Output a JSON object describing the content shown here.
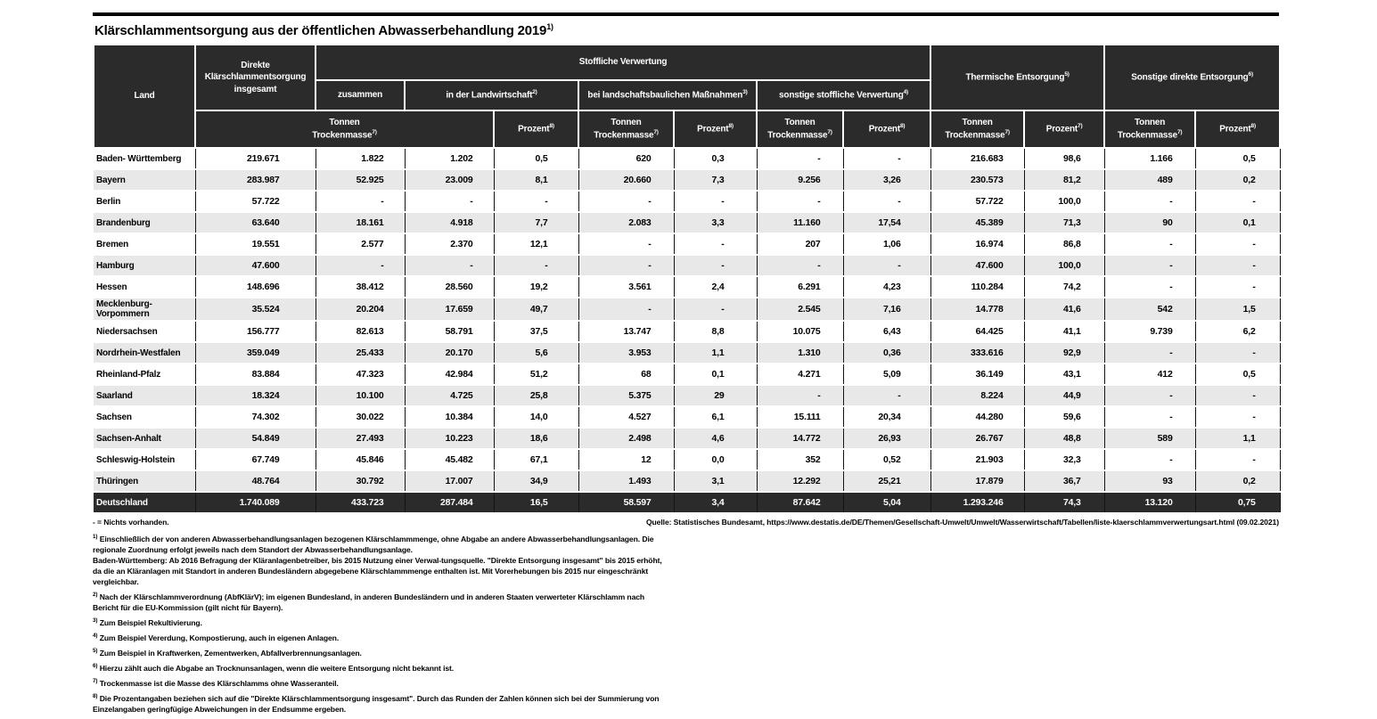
{
  "title": {
    "text": "Klärschlammentsorgung aus der öffentlichen Abwasserbehandlung 2019",
    "sup": "1)"
  },
  "header": {
    "land": "Land",
    "direkte": "Direkte Klärschlammentsorgung insgesamt",
    "stoffliche": "Stoffliche Verwertung",
    "zusammen": "zusammen",
    "landwirtschaft": {
      "label": "in der Landwirtschaft",
      "sup": "2)"
    },
    "landschaftsbau": {
      "label": "bei landschaftsbaulichen Maßnahmen",
      "sup": "3)"
    },
    "sonstige_stoffliche": {
      "label": "sonstige stoffliche Verwertung",
      "sup": "4)"
    },
    "thermische": {
      "label": "Thermische Entsorgung",
      "sup": "5)"
    },
    "sonstige_direkte": {
      "label": "Sonstige direkte Entsorgung",
      "sup": "6)"
    },
    "tonnen": {
      "line1": "Tonnen",
      "line2": "Trockenmasse",
      "sup": "7)"
    },
    "prozent8": {
      "label": "Prozent",
      "sup": "8)"
    },
    "prozent7": {
      "label": "Prozent",
      "sup": "7)"
    }
  },
  "table": {
    "value_columns": [
      "Direkte Klärschlammentsorgung insgesamt – Tonnen Trockenmasse",
      "Stoffliche Verwertung zusammen – Tonnen Trockenmasse",
      "in der Landwirtschaft – Tonnen Trockenmasse",
      "in der Landwirtschaft – Prozent",
      "bei landschaftsbaulichen Maßnahmen – Tonnen Trockenmasse",
      "bei landschaftsbaulichen Maßnahmen – Prozent",
      "sonstige stoffliche Verwertung – Tonnen Trockenmasse",
      "sonstige stoffliche Verwertung – Prozent",
      "Thermische Entsorgung – Tonnen Trockenmasse",
      "Thermische Entsorgung – Prozent",
      "Sonstige direkte Entsorgung – Tonnen Trockenmasse",
      "Sonstige direkte Entsorgung – Prozent"
    ],
    "rows": [
      {
        "land": "Baden- Württemberg",
        "values": [
          "219.671",
          "1.822",
          "1.202",
          "0,5",
          "620",
          "0,3",
          "-",
          "-",
          "216.683",
          "98,6",
          "1.166",
          "0,5"
        ]
      },
      {
        "land": "Bayern",
        "values": [
          "283.987",
          "52.925",
          "23.009",
          "8,1",
          "20.660",
          "7,3",
          "9.256",
          "3,26",
          "230.573",
          "81,2",
          "489",
          "0,2"
        ]
      },
      {
        "land": "Berlin",
        "values": [
          "57.722",
          "-",
          "-",
          "-",
          "-",
          "-",
          "-",
          "-",
          "57.722",
          "100,0",
          "-",
          "-"
        ]
      },
      {
        "land": "Brandenburg",
        "values": [
          "63.640",
          "18.161",
          "4.918",
          "7,7",
          "2.083",
          "3,3",
          "11.160",
          "17,54",
          "45.389",
          "71,3",
          "90",
          "0,1"
        ]
      },
      {
        "land": "Bremen",
        "values": [
          "19.551",
          "2.577",
          "2.370",
          "12,1",
          "-",
          "-",
          "207",
          "1,06",
          "16.974",
          "86,8",
          "-",
          "-"
        ]
      },
      {
        "land": "Hamburg",
        "values": [
          "47.600",
          "-",
          "-",
          "-",
          "-",
          "-",
          "-",
          "-",
          "47.600",
          "100,0",
          "-",
          "-"
        ]
      },
      {
        "land": "Hessen",
        "values": [
          "148.696",
          "38.412",
          "28.560",
          "19,2",
          "3.561",
          "2,4",
          "6.291",
          "4,23",
          "110.284",
          "74,2",
          "-",
          "-"
        ]
      },
      {
        "land": "Mecklenburg-Vorpommern",
        "values": [
          "35.524",
          "20.204",
          "17.659",
          "49,7",
          "-",
          "-",
          "2.545",
          "7,16",
          "14.778",
          "41,6",
          "542",
          "1,5"
        ]
      },
      {
        "land": "Niedersachsen",
        "values": [
          "156.777",
          "82.613",
          "58.791",
          "37,5",
          "13.747",
          "8,8",
          "10.075",
          "6,43",
          "64.425",
          "41,1",
          "9.739",
          "6,2"
        ]
      },
      {
        "land": "Nordrhein-Westfalen",
        "values": [
          "359.049",
          "25.433",
          "20.170",
          "5,6",
          "3.953",
          "1,1",
          "1.310",
          "0,36",
          "333.616",
          "92,9",
          "-",
          "-"
        ]
      },
      {
        "land": "Rheinland-Pfalz",
        "values": [
          "83.884",
          "47.323",
          "42.984",
          "51,2",
          "68",
          "0,1",
          "4.271",
          "5,09",
          "36.149",
          "43,1",
          "412",
          "0,5"
        ]
      },
      {
        "land": "Saarland",
        "values": [
          "18.324",
          "10.100",
          "4.725",
          "25,8",
          "5.375",
          "29",
          "-",
          "-",
          "8.224",
          "44,9",
          "-",
          "-"
        ]
      },
      {
        "land": "Sachsen",
        "values": [
          "74.302",
          "30.022",
          "10.384",
          "14,0",
          "4.527",
          "6,1",
          "15.111",
          "20,34",
          "44.280",
          "59,6",
          "-",
          "-"
        ]
      },
      {
        "land": "Sachsen-Anhalt",
        "values": [
          "54.849",
          "27.493",
          "10.223",
          "18,6",
          "2.498",
          "4,6",
          "14.772",
          "26,93",
          "26.767",
          "48,8",
          "589",
          "1,1"
        ]
      },
      {
        "land": "Schleswig-Holstein",
        "values": [
          "67.749",
          "45.846",
          "45.482",
          "67,1",
          "12",
          "0,0",
          "352",
          "0,52",
          "21.903",
          "32,3",
          "-",
          "-"
        ]
      },
      {
        "land": "Thüringen",
        "values": [
          "48.764",
          "30.792",
          "17.007",
          "34,9",
          "1.493",
          "3,1",
          "12.292",
          "25,21",
          "17.879",
          "36,7",
          "93",
          "0,2"
        ]
      }
    ],
    "total": {
      "land": "Deutschland",
      "values": [
        "1.740.089",
        "433.723",
        "287.484",
        "16,5",
        "58.597",
        "3,4",
        "87.642",
        "5,04",
        "1.293.246",
        "74,3",
        "13.120",
        "0,75"
      ]
    }
  },
  "footnotes": {
    "dash": "- = Nichts vorhanden.",
    "items": [
      {
        "sup": "1)",
        "text": "Einschließlich der von anderen Abwasserbehandlungsanlagen bezogenen Klärschlammmenge, ohne Abgabe an andere Abwasserbehandlungsanlagen. Die regionale Zuordnung erfolgt jeweils nach dem Standort der Abwasserbehandlungsanlage.",
        "text2": "Baden-Württemberg: Ab 2016 Befragung der Kläranlagenbetreiber, bis 2015 Nutzung einer Verwal-tungsquelle. \"Direkte Entsorgung insgesamt\" bis 2015 erhöht, da die an Kläranlagen mit Standort in anderen Bundesländern abgegebene Klärschlammmenge enthalten ist. Mit Vorerhebungen bis 2015 nur eingeschränkt vergleichbar."
      },
      {
        "sup": "2)",
        "text": "Nach der Klärschlammverordnung (AbfKlärV); im eigenen Bundesland, in anderen Bundesländern und in anderen Staaten verwerteter Klärschlamm nach Bericht für die EU-Kommission (gilt nicht für Bayern)."
      },
      {
        "sup": "3)",
        "text": "Zum Beispiel Rekultivierung."
      },
      {
        "sup": "4)",
        "text": "Zum Beispiel Vererdung, Kompostierung, auch in eigenen Anlagen."
      },
      {
        "sup": "5)",
        "text": "Zum Beispiel in Kraftwerken, Zementwerken, Abfallverbrennungsanlagen."
      },
      {
        "sup": "6)",
        "text": "Hierzu zählt auch die Abgabe an Trocknunsanlagen, wenn die weitere Entsorgung nicht bekannt ist."
      },
      {
        "sup": "7)",
        "text": "Trockenmasse ist die Masse des Klärschlamms ohne Wasseranteil."
      },
      {
        "sup": "8)",
        "text": "Die Prozentangaben beziehen sich auf die \"Direkte Klärschlammentsorgung insgesamt\". Durch das Runden der Zahlen können sich bei der Summierung von Einzelangaben geringfügige Abweichungen in der Endsumme ergeben."
      }
    ],
    "source": "Quelle: Statistisches Bundesamt, https://www.destatis.de/DE/Themen/Gesellschaft-Umwelt/Umwelt/Wasserwirtschaft/Tabellen/liste-klaerschlammverwertungsart.html (09.02.2021)"
  },
  "colors": {
    "header_bg": "#2b2b2b",
    "zebra": "#e8e8e8",
    "total_bg": "#2b2b2b",
    "rule": "#000000"
  }
}
